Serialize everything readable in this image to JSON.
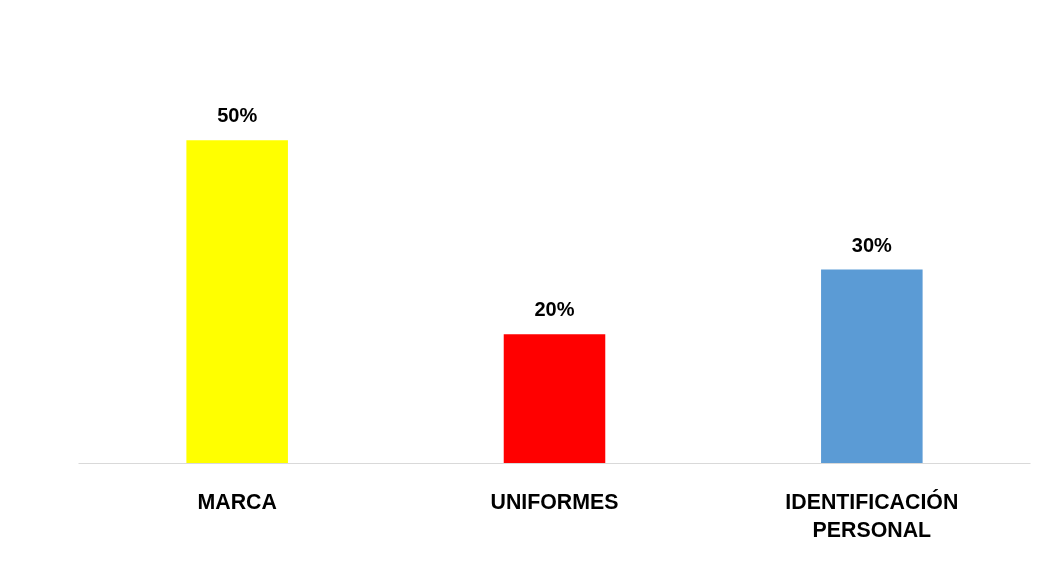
{
  "chart_data": {
    "type": "bar",
    "categories": [
      "MARCA",
      "UNIFORMES",
      "IDENTIFICACIÓN PERSONAL"
    ],
    "values": [
      50,
      20,
      30
    ],
    "colors": [
      "#ffff00",
      "#ff0000",
      "#5b9bd5"
    ],
    "value_labels": [
      "50%",
      "20%",
      "30%"
    ]
  }
}
